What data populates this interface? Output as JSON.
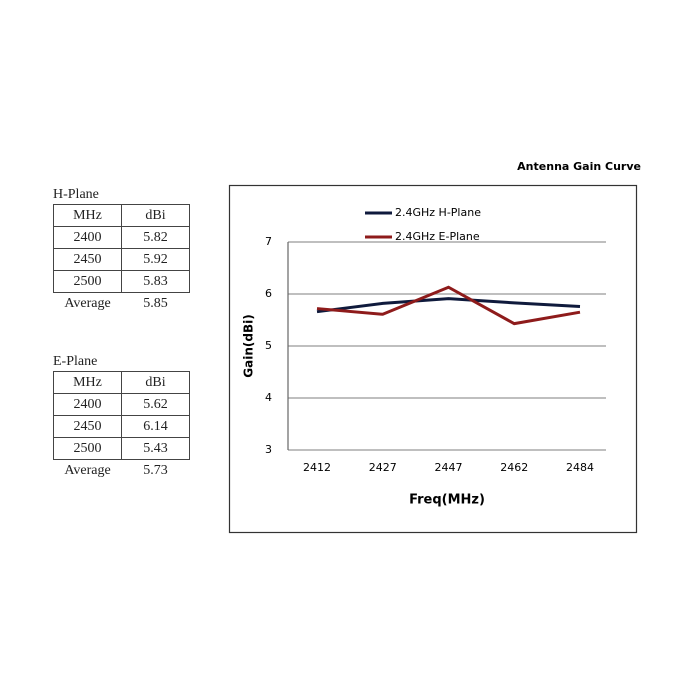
{
  "h_plane": {
    "title": "H-Plane",
    "header": [
      "MHz",
      "dBi"
    ],
    "rows": [
      [
        2400,
        5.82
      ],
      [
        2450,
        5.92
      ],
      [
        2500,
        5.83
      ]
    ],
    "average": [
      "Average",
      5.85
    ]
  },
  "e_plane": {
    "title": "E-Plane",
    "header": [
      "MHz",
      "dBi"
    ],
    "rows": [
      [
        2400,
        5.62
      ],
      [
        2450,
        6.14
      ],
      [
        2500,
        5.43
      ]
    ],
    "average": [
      "Average",
      5.73
    ]
  },
  "chart_data": {
    "type": "line",
    "title": "Antenna Gain Curve",
    "x_label": "Freq(MHz)",
    "y_label": "Gain(dBi)",
    "categories": [
      "2412",
      "2427",
      "2447",
      "2462",
      "2484"
    ],
    "series": [
      {
        "name": "2.4GHz H-Plane",
        "color": "#0f1a3c",
        "values": [
          5.66,
          5.82,
          5.91,
          5.83,
          5.76
        ]
      },
      {
        "name": "2.4GHz E-Plane",
        "color": "#8e1b1b",
        "values": [
          5.72,
          5.61,
          6.13,
          5.43,
          5.65
        ]
      }
    ],
    "ylim": [
      3,
      7
    ],
    "yticks": [
      3,
      4,
      5,
      6,
      7
    ],
    "grid": true
  }
}
